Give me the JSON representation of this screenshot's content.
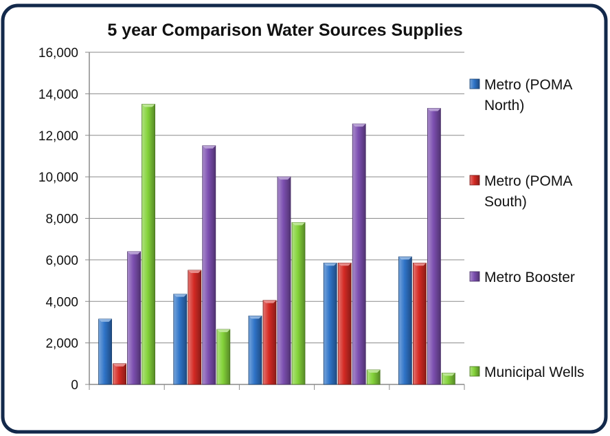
{
  "chart_data": {
    "type": "bar",
    "title": "5  year Comparison Water Sources Supplies",
    "xlabel": "",
    "ylabel": "",
    "categories": [
      "",
      "",
      "",
      "",
      ""
    ],
    "ylim": [
      0,
      16000
    ],
    "yticks": [
      0,
      2000,
      4000,
      6000,
      8000,
      10000,
      12000,
      14000,
      16000
    ],
    "ytick_labels": [
      "0",
      "2,000",
      "4,000",
      "6,000",
      "8,000",
      "10,000",
      "12,000",
      "14,000",
      "16,000"
    ],
    "grid": true,
    "legend_position": "right",
    "series": [
      {
        "name": "Metro (POMA North)",
        "legend_lines": [
          "Metro (POMA",
          "North)"
        ],
        "color": "#2f74c8",
        "values": [
          3150,
          4350,
          3300,
          5850,
          6150
        ]
      },
      {
        "name": "Metro (POMA South)",
        "legend_lines": [
          "Metro (POMA",
          "South)"
        ],
        "color": "#d42a24",
        "values": [
          1000,
          5500,
          4050,
          5850,
          5850
        ]
      },
      {
        "name": "Metro Booster",
        "legend_lines": [
          "Metro Booster"
        ],
        "color": "#7c4fb0",
        "values": [
          6400,
          11500,
          10000,
          12550,
          13300
        ]
      },
      {
        "name": "Municipal Wells",
        "legend_lines": [
          "Municipal Wells"
        ],
        "color": "#84d23a",
        "values": [
          13500,
          2650,
          7800,
          700,
          550
        ]
      }
    ]
  }
}
